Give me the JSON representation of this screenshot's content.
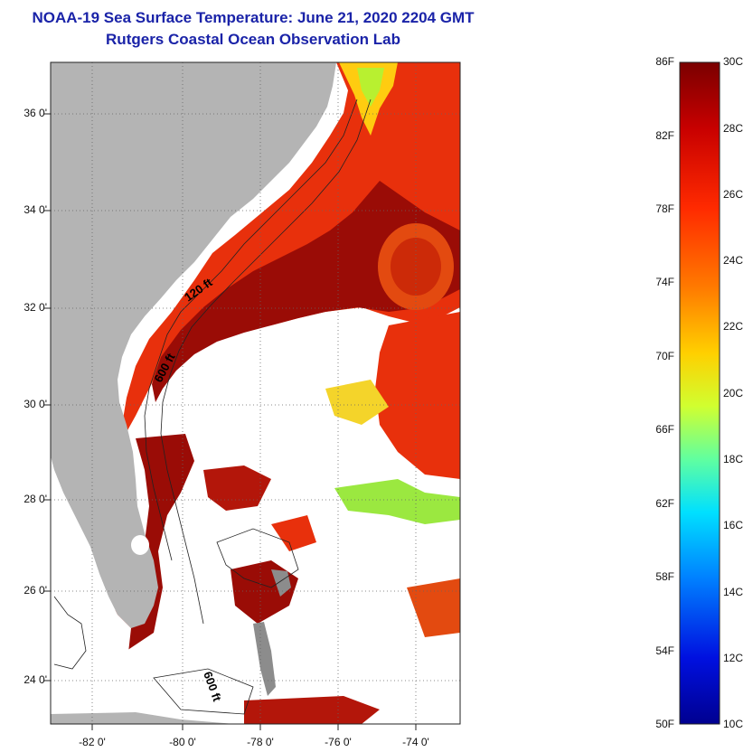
{
  "title": "NOAA-19 Sea Surface Temperature:  June 21, 2020 2204 GMT",
  "subtitle": "Rutgers Coastal Ocean Observation Lab",
  "map": {
    "lat_labels": [
      "36 0'",
      "34 0'",
      "32 0'",
      "30 0'",
      "28 0'",
      "26 0'",
      "24 0'"
    ],
    "lon_labels": [
      "-82 0'",
      "-80 0'",
      "-78 0'",
      "-76 0'",
      "-74 0'"
    ],
    "contour_labels": [
      "120 ft",
      "600 ft",
      "600 ft"
    ],
    "colors": {
      "land": "#b4b4b4",
      "no_data": "#ffffff",
      "gulf_stream": "#9a0c06",
      "shelf": "#e8300c"
    }
  },
  "colorbar": {
    "fahrenheit_labels": [
      "86F",
      "82F",
      "78F",
      "74F",
      "70F",
      "66F",
      "62F",
      "58F",
      "54F",
      "50F"
    ],
    "celsius_labels": [
      "30C",
      "28C",
      "26C",
      "24C",
      "22C",
      "20C",
      "18C",
      "16C",
      "14C",
      "12C",
      "10C"
    ],
    "color_stops": [
      "#7a0000",
      "#c80000",
      "#ff2a00",
      "#ff7a00",
      "#ffd000",
      "#d0ff30",
      "#60ffa0",
      "#00e0ff",
      "#0080ff",
      "#0010e0",
      "#000090"
    ]
  }
}
